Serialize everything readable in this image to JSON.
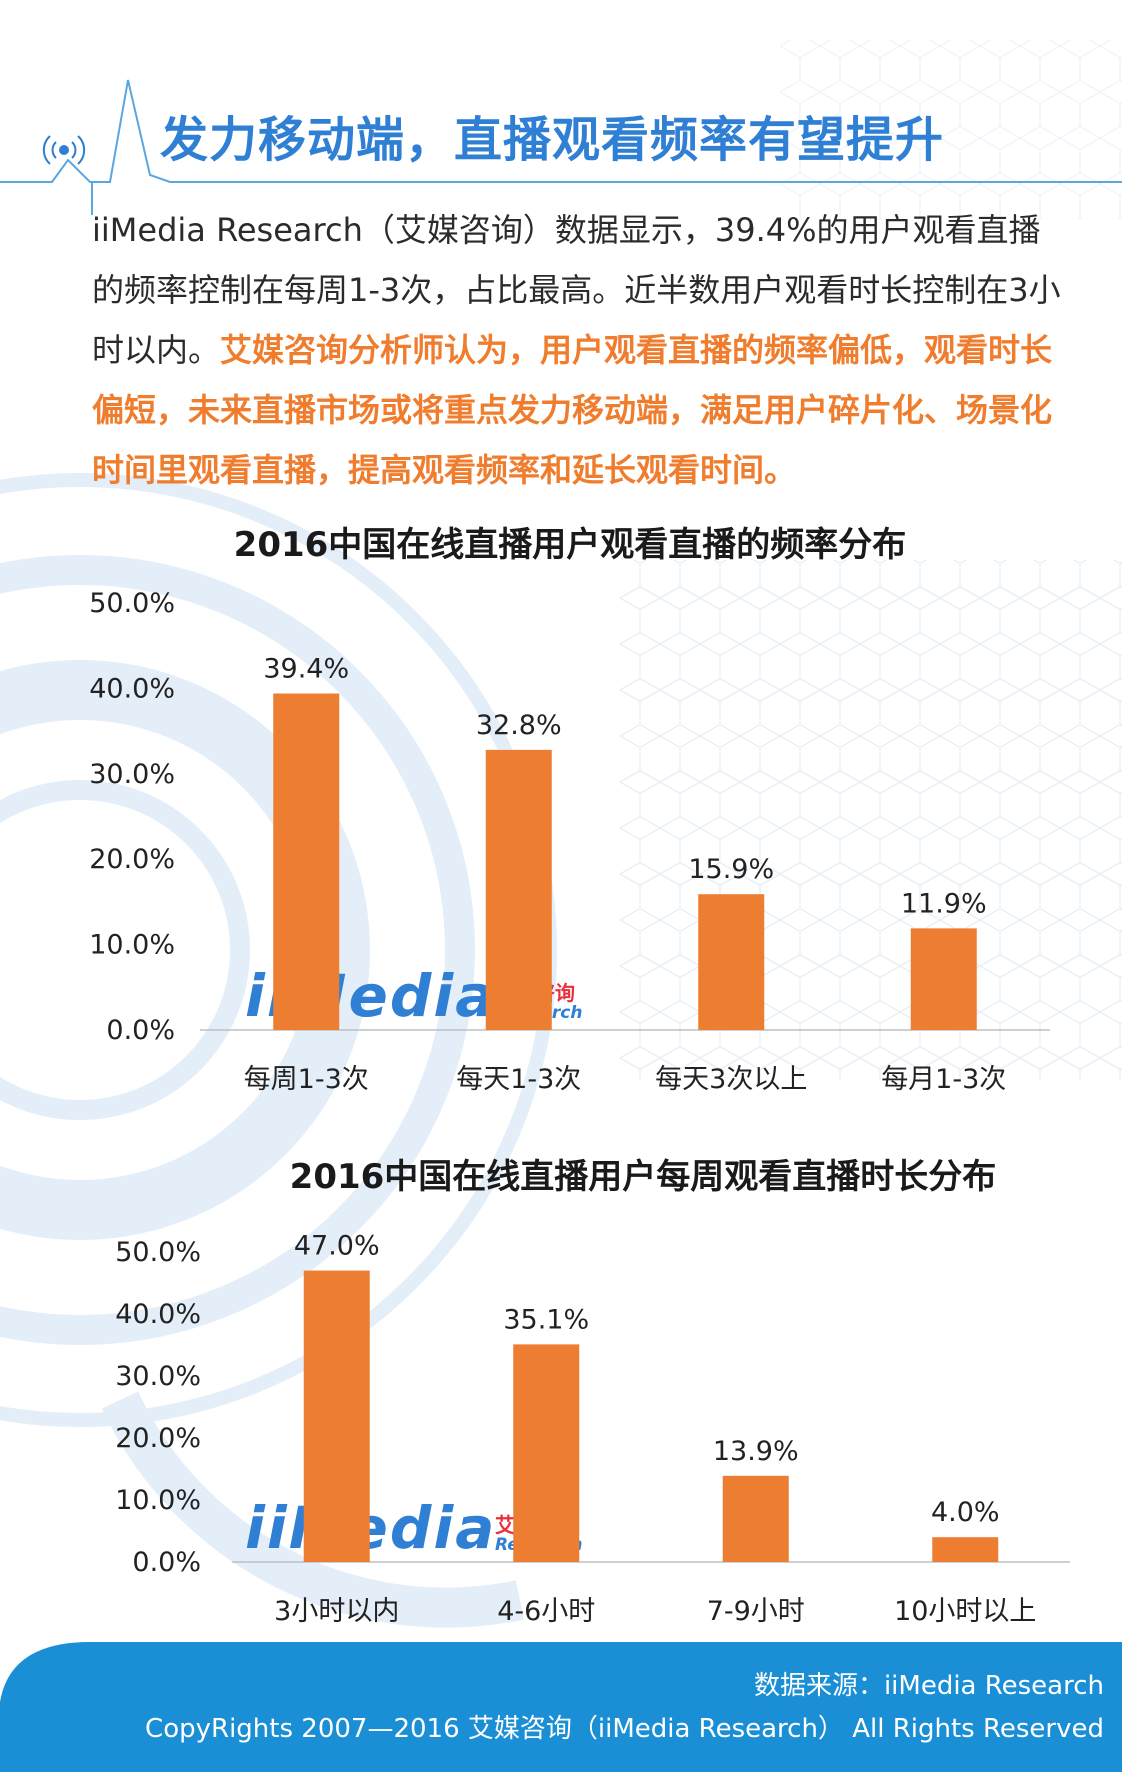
{
  "header": {
    "title": "发力移动端，直播观看频率有望提升"
  },
  "intro": {
    "plain": "iiMedia Research（艾媒咨询）数据显示，39.4%的用户观看直播的频率控制在每周1-3次，占比最高。近半数用户观看时长控制在3小时以内。",
    "highlight": "艾媒咨询分析师认为，用户观看直播的频率偏低，观看时长偏短，未来直播市场或将重点发力移动端，满足用户碎片化、场景化时间里观看直播，提高观看频率和延长观看时间。"
  },
  "watermark": {
    "brand": "iiMedia",
    "cn": "艾媒咨询",
    "en": "Research"
  },
  "chart_data": [
    {
      "type": "bar",
      "title": "2016中国在线直播用户观看直播的频率分布",
      "categories": [
        "每周1-3次",
        "每天1-3次",
        "每天3次以上",
        "每月1-3次"
      ],
      "values": [
        39.4,
        32.8,
        15.9,
        11.9
      ],
      "value_labels": [
        "39.4%",
        "32.8%",
        "15.9%",
        "11.9%"
      ],
      "yticks": [
        "0.0%",
        "10.0%",
        "20.0%",
        "30.0%",
        "40.0%",
        "50.0%"
      ],
      "ylim": [
        0,
        50
      ],
      "grid": false,
      "bar_color": "#ed7d31"
    },
    {
      "type": "bar",
      "title": "2016中国在线直播用户每周观看直播时长分布",
      "categories": [
        "3小时以内",
        "4-6小时",
        "7-9小时",
        "10小时以上"
      ],
      "values": [
        47.0,
        35.1,
        13.9,
        4.0
      ],
      "value_labels": [
        "47.0%",
        "35.1%",
        "13.9%",
        "4.0%"
      ],
      "yticks": [
        "0.0%",
        "10.0%",
        "20.0%",
        "30.0%",
        "40.0%",
        "50.0%"
      ],
      "ylim": [
        0,
        50
      ],
      "grid": false,
      "bar_color": "#ed7d31"
    }
  ],
  "footer": {
    "source": "数据来源：iiMedia Research",
    "copyright": "CopyRights 2007—2016 艾媒咨询（iiMedia Research） All Rights Reserved",
    "band_color": "#1a8fd6"
  }
}
